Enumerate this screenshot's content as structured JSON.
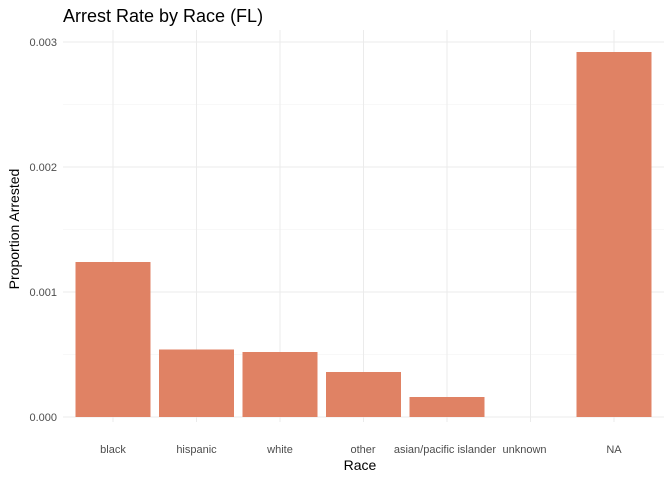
{
  "chart_data": {
    "type": "bar",
    "title": "Arrest Rate by Race (FL)",
    "xlabel": "Race",
    "ylabel": "Proportion Arrested",
    "categories": [
      "black",
      "hispanic",
      "white",
      "other",
      "asian/pacific islander",
      "unknown",
      "NA"
    ],
    "values": [
      0.00124,
      0.00054,
      0.00052,
      0.00036,
      0.00016,
      0,
      0.00292
    ],
    "ylim": [
      0,
      0.003
    ],
    "yticks": [
      0,
      0.001,
      0.002,
      0.003
    ],
    "ytick_labels": [
      "0.000",
      "0.001",
      "0.002",
      "0.003"
    ],
    "bar_color": "#E08264",
    "grid": true,
    "legend": "none"
  }
}
